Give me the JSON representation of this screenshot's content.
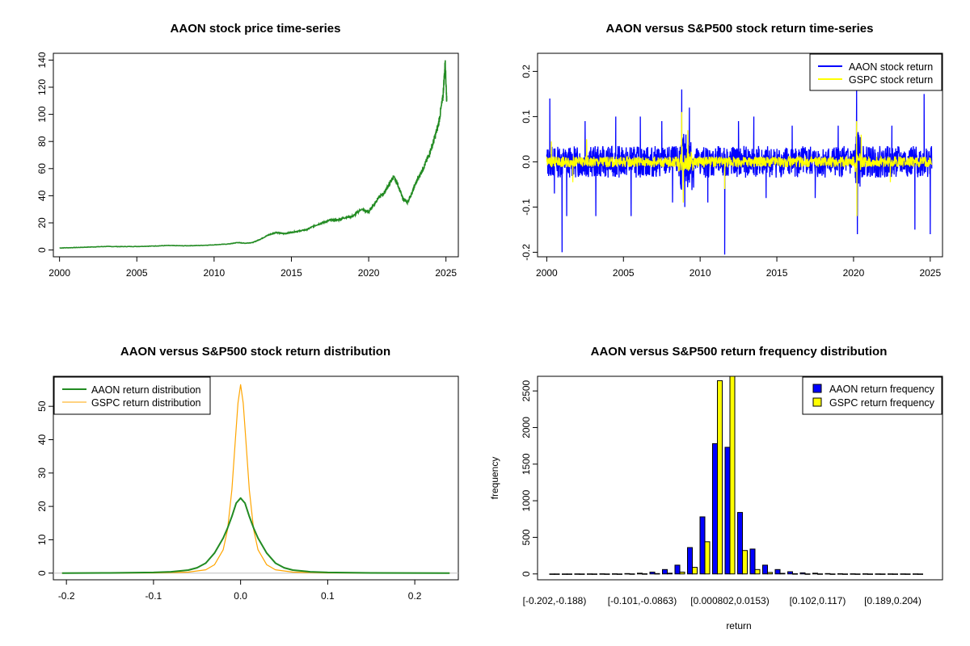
{
  "chart_data": [
    {
      "type": "line",
      "title": "AAON stock price time-series",
      "xlabel": "",
      "ylabel": "",
      "xlim": [
        1999.6,
        2025.8
      ],
      "ylim": [
        -5,
        145
      ],
      "x_ticks": [
        2000,
        2005,
        2010,
        2015,
        2020,
        2025
      ],
      "y_ticks": [
        0,
        20,
        40,
        60,
        80,
        100,
        120,
        140
      ],
      "grid": false,
      "color": "#228b22",
      "series": [
        {
          "x": [
            2000,
            2001,
            2002,
            2003,
            2004,
            2005,
            2006,
            2007,
            2008,
            2009,
            2010,
            2011,
            2011.5,
            2012,
            2012.5,
            2013,
            2013.5,
            2014,
            2014.5,
            2015,
            2015.5,
            2016,
            2016.5,
            2017,
            2017.5,
            2018,
            2018.5,
            2019,
            2019.5,
            2020,
            2020.3,
            2020.6,
            2021,
            2021.3,
            2021.6,
            2021.9,
            2022.2,
            2022.5,
            2022.8,
            2023,
            2023.3,
            2023.6,
            2023.9,
            2024.2,
            2024.5,
            2024.8,
            2024.95,
            2025.05
          ],
          "y": [
            1.5,
            1.8,
            2.2,
            2.6,
            2.5,
            2.6,
            2.9,
            3.3,
            3.1,
            3.3,
            3.8,
            4.5,
            5.5,
            5.0,
            5.5,
            8,
            11,
            13,
            12,
            13,
            14,
            15,
            18,
            20,
            22,
            22,
            24,
            25,
            30,
            28,
            33,
            38,
            42,
            48,
            54,
            48,
            38,
            35,
            42,
            48,
            55,
            62,
            70,
            80,
            92,
            112,
            138,
            110
          ]
        }
      ]
    },
    {
      "type": "line",
      "title": "AAON versus S&P500 stock return time-series",
      "xlabel": "",
      "ylabel": "",
      "xlim": [
        1999.4,
        2025.8
      ],
      "ylim": [
        -0.21,
        0.24
      ],
      "x_ticks": [
        2000,
        2005,
        2010,
        2015,
        2020,
        2025
      ],
      "y_ticks": [
        -0.2,
        -0.1,
        0.0,
        0.1,
        0.2
      ],
      "y_tick_labels": [
        "-0.2",
        "-0.1",
        "0.0",
        "0.1",
        "0.2"
      ],
      "legend_position": "top-right",
      "series": [
        {
          "name": "AAON stock return",
          "color": "#0000ff",
          "band": 0.035,
          "spikes": [
            [
              2000.2,
              0.14
            ],
            [
              2000.5,
              -0.07
            ],
            [
              2001.0,
              -0.2
            ],
            [
              2001.3,
              -0.12
            ],
            [
              2002.5,
              0.09
            ],
            [
              2003.2,
              -0.12
            ],
            [
              2004.5,
              0.1
            ],
            [
              2005.5,
              -0.12
            ],
            [
              2006.1,
              0.1
            ],
            [
              2007.5,
              0.09
            ],
            [
              2008.2,
              -0.09
            ],
            [
              2008.8,
              0.16
            ],
            [
              2009.0,
              -0.1
            ],
            [
              2009.3,
              0.12
            ],
            [
              2010.5,
              -0.09
            ],
            [
              2011.6,
              -0.205
            ],
            [
              2012.5,
              0.09
            ],
            [
              2013.5,
              0.1
            ],
            [
              2014.3,
              -0.08
            ],
            [
              2016.0,
              0.08
            ],
            [
              2017.5,
              -0.08
            ],
            [
              2019.0,
              0.08
            ],
            [
              2020.2,
              0.16
            ],
            [
              2020.25,
              -0.16
            ],
            [
              2022.5,
              0.08
            ],
            [
              2024.0,
              -0.15
            ],
            [
              2024.6,
              0.15
            ],
            [
              2025.0,
              -0.16
            ]
          ]
        },
        {
          "name": "GSPC stock return",
          "color": "#ffff00",
          "band": 0.012,
          "spikes": [
            [
              2000.3,
              0.045
            ],
            [
              2001.7,
              -0.045
            ],
            [
              2002.6,
              0.05
            ],
            [
              2008.8,
              0.11
            ],
            [
              2008.9,
              -0.09
            ],
            [
              2009.2,
              0.07
            ],
            [
              2011.6,
              -0.06
            ],
            [
              2020.2,
              0.09
            ],
            [
              2020.22,
              -0.12
            ],
            [
              2020.5,
              0.06
            ],
            [
              2022.4,
              -0.045
            ]
          ]
        }
      ]
    },
    {
      "type": "line",
      "title": "AAON versus S&P500 stock return distribution",
      "xlabel": "",
      "ylabel": "",
      "xlim": [
        -0.215,
        0.25
      ],
      "ylim": [
        -2,
        59
      ],
      "x_ticks": [
        -0.2,
        -0.1,
        0.0,
        0.1,
        0.2
      ],
      "x_tick_labels": [
        "-0.2",
        "-0.1",
        "0.0",
        "0.1",
        "0.2"
      ],
      "y_ticks": [
        0,
        10,
        20,
        30,
        40,
        50
      ],
      "legend_position": "top-left",
      "series": [
        {
          "name": "AAON return distribution",
          "color": "#228b22",
          "x": [
            -0.205,
            -0.15,
            -0.1,
            -0.08,
            -0.06,
            -0.05,
            -0.04,
            -0.03,
            -0.02,
            -0.015,
            -0.01,
            -0.005,
            0.0,
            0.005,
            0.01,
            0.015,
            0.02,
            0.03,
            0.04,
            0.05,
            0.06,
            0.08,
            0.1,
            0.15,
            0.24
          ],
          "y": [
            0.0,
            0.05,
            0.2,
            0.4,
            0.9,
            1.6,
            3.0,
            6.0,
            10.5,
            13.5,
            17.0,
            21.0,
            22.5,
            21.0,
            17.0,
            13.5,
            10.5,
            6.0,
            3.0,
            1.6,
            0.9,
            0.4,
            0.2,
            0.05,
            0.0
          ]
        },
        {
          "name": "GSPC return distribution",
          "color": "#ffa500",
          "x": [
            -0.205,
            -0.1,
            -0.06,
            -0.04,
            -0.03,
            -0.02,
            -0.015,
            -0.01,
            -0.006,
            -0.003,
            0.0,
            0.003,
            0.006,
            0.01,
            0.015,
            0.02,
            0.03,
            0.04,
            0.06,
            0.1,
            0.24
          ],
          "y": [
            0.0,
            0.05,
            0.3,
            1.0,
            2.5,
            7.0,
            13.0,
            25.0,
            40.0,
            51.0,
            56.5,
            51.0,
            40.0,
            25.0,
            13.0,
            7.0,
            2.5,
            1.0,
            0.3,
            0.05,
            0.0
          ]
        }
      ]
    },
    {
      "type": "bar",
      "title": "AAON versus S&P500 return frequency distribution",
      "xlabel": "return",
      "ylabel": "frequency",
      "ylim": [
        -80,
        2700
      ],
      "y_ticks": [
        0,
        500,
        1000,
        1500,
        2000,
        2500
      ],
      "x_tick_labels": [
        "[-0.202,-0.188)",
        "[-0.101,-0.0863)",
        "[0.000802,0.0153)",
        "[0.102,0.117)",
        "[0.189,0.204)"
      ],
      "x_tick_positions": [
        0,
        7,
        14,
        21,
        27
      ],
      "legend_position": "top-right",
      "series": [
        {
          "name": "AAON return frequency",
          "color": "#0000ff",
          "values": [
            0,
            0,
            1,
            1,
            2,
            2,
            5,
            10,
            25,
            60,
            120,
            360,
            780,
            1780,
            1730,
            840,
            340,
            120,
            60,
            30,
            15,
            10,
            5,
            3,
            2,
            2,
            1,
            1,
            1,
            1
          ]
        },
        {
          "name": "GSPC return frequency",
          "color": "#ffff00",
          "values": [
            0,
            0,
            0,
            0,
            0,
            0,
            1,
            2,
            5,
            10,
            25,
            90,
            440,
            2640,
            2700,
            320,
            60,
            20,
            8,
            3,
            1,
            1,
            0,
            0,
            0,
            0,
            0,
            0,
            0,
            0
          ]
        }
      ]
    }
  ]
}
